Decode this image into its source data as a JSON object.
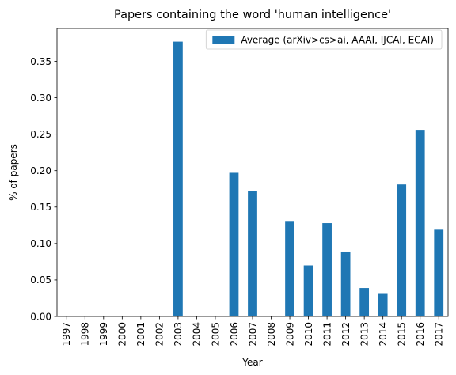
{
  "chart_data": {
    "type": "bar",
    "title": "Papers containing the word 'human intelligence'",
    "xlabel": "Year",
    "ylabel": "% of papers",
    "categories": [
      "1997",
      "1998",
      "1999",
      "2000",
      "2001",
      "2002",
      "2003",
      "2004",
      "2005",
      "2006",
      "2007",
      "2008",
      "2009",
      "2010",
      "2011",
      "2012",
      "2013",
      "2014",
      "2015",
      "2016",
      "2017"
    ],
    "series": [
      {
        "name": "Average (arXiv>cs>ai, AAAI, IJCAI, ECAI)",
        "color": "#1f77b4",
        "values": [
          0,
          0,
          0,
          0,
          0,
          0,
          0.377,
          0,
          0,
          0.197,
          0.172,
          0,
          0.131,
          0.07,
          0.128,
          0.089,
          0.039,
          0.032,
          0.181,
          0.256,
          0.119
        ]
      }
    ],
    "ylim": [
      0,
      0.395
    ],
    "yticks": [
      "0.00",
      "0.05",
      "0.10",
      "0.15",
      "0.20",
      "0.25",
      "0.30",
      "0.35"
    ],
    "grid": false,
    "legend_position": "top-right"
  }
}
